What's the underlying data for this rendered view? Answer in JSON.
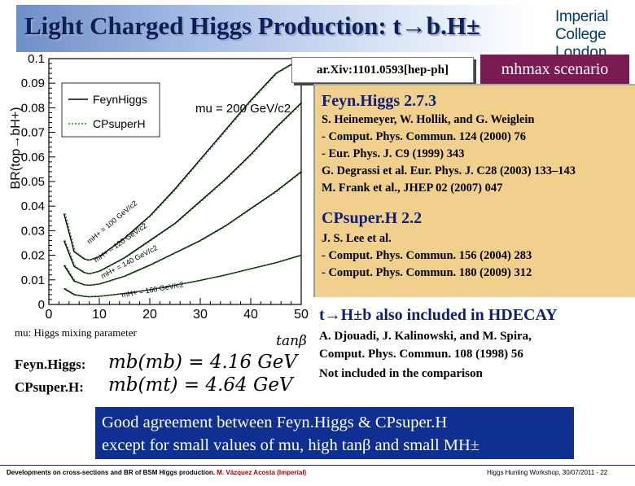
{
  "slide": {
    "title": "Light Charged Higgs Production: t→b.H±",
    "logo": {
      "line1": "Imperial College",
      "line2": "London"
    },
    "arxiv": "ar.Xiv:1101.0593[hep-ph]",
    "scenario": "mhmax scenario"
  },
  "references": {
    "feynhiggs_title": "Feyn.Higgs 2.7.3",
    "feynhiggs_lines": [
      "S. Heinemeyer, W. Hollik, and G. Weiglein",
      " - Comput. Phys. Commun. 124 (2000) 76",
      " - Eur. Phys. J. C9 (1999) 343",
      "G. Degrassi et al. Eur. Phys. J. C28 (2003) 133–143",
      "M. Frank et al., JHEP 02 (2007) 047"
    ],
    "cpsuperh_title": "CPsuper.H 2.2",
    "cpsuperh_lines": [
      "J. S. Lee et al.",
      "- Comput. Phys. Commun. 156 (2004) 283",
      "- Comput. Phys. Commun. 180 (2009) 312"
    ]
  },
  "hdecay": {
    "title": "t→H±b also included in HDECAY",
    "lines": [
      "A. Djouadi, J. Kalinowski, and M. Spira,",
      "Comput. Phys. Commun. 108 (1998) 56",
      "Not included in the comparison"
    ]
  },
  "mb": {
    "mu_note": "mu: Higgs mixing parameter",
    "feynhiggs_label": "Feyn.Higgs:",
    "feynhiggs_eq": "mb(mb) = 4.16 GeV",
    "cpsuperh_label": "CPsuper.H:",
    "cpsuperh_eq": "mb(mt) = 4.64 GeV"
  },
  "conclusion": {
    "line1": "Good agreement between Feyn.Higgs & CPsuper.H",
    "line2": "except for small values of mu, high tanβ and small MH±"
  },
  "footer": {
    "left": "Developments on cross-sections and BR of BSM Higgs production.",
    "author": "M. Vázquez Acosta (Imperial)",
    "right": "Higgs Hunting Workshop, 30/07/2011 - 22"
  },
  "chart_data": {
    "type": "line",
    "ylabel": "BR(top→bH+)",
    "xlabel": "tanβ",
    "xlim": [
      0,
      50
    ],
    "ylim": [
      0,
      0.1
    ],
    "xticks": [
      "0",
      "10",
      "20",
      "30",
      "40",
      "50"
    ],
    "yticks": [
      "0",
      "0.01",
      "0.02",
      "0.03",
      "0.04",
      "0.05",
      "0.06",
      "0.07",
      "0.08",
      "0.09",
      "0.1"
    ],
    "legend": [
      "FeynHiggs",
      "CPsuperH"
    ],
    "annotation": "mu = 200 GeV/c2",
    "series": [
      {
        "label": "mH+ = 100 GeV/c2",
        "x": [
          3,
          5,
          7,
          8,
          10,
          15,
          20,
          25,
          30,
          35,
          40,
          45,
          50
        ],
        "y": [
          0.037,
          0.0215,
          0.0185,
          0.018,
          0.0195,
          0.027,
          0.036,
          0.047,
          0.059,
          0.071,
          0.083,
          0.094,
          0.102
        ]
      },
      {
        "label": "mH+ = 120 GeV/c2",
        "x": [
          3,
          5,
          7,
          8,
          10,
          15,
          20,
          25,
          30,
          35,
          40,
          45,
          50
        ],
        "y": [
          0.026,
          0.0155,
          0.013,
          0.0125,
          0.0135,
          0.019,
          0.026,
          0.033,
          0.042,
          0.051,
          0.061,
          0.072,
          0.082
        ]
      },
      {
        "label": "mH+ = 140 GeV/c2",
        "x": [
          3,
          5,
          7,
          8,
          10,
          15,
          20,
          25,
          30,
          35,
          40,
          45,
          50
        ],
        "y": [
          0.016,
          0.0095,
          0.008,
          0.0078,
          0.0083,
          0.0115,
          0.016,
          0.021,
          0.026,
          0.032,
          0.039,
          0.046,
          0.054
        ]
      },
      {
        "label": "mH+ = 160 GeV/c2",
        "x": [
          3,
          5,
          7,
          8,
          10,
          15,
          20,
          25,
          30,
          35,
          40,
          45,
          50
        ],
        "y": [
          0.0065,
          0.004,
          0.0033,
          0.0031,
          0.0033,
          0.0045,
          0.006,
          0.0078,
          0.0098,
          0.012,
          0.0145,
          0.017,
          0.02
        ]
      }
    ]
  }
}
